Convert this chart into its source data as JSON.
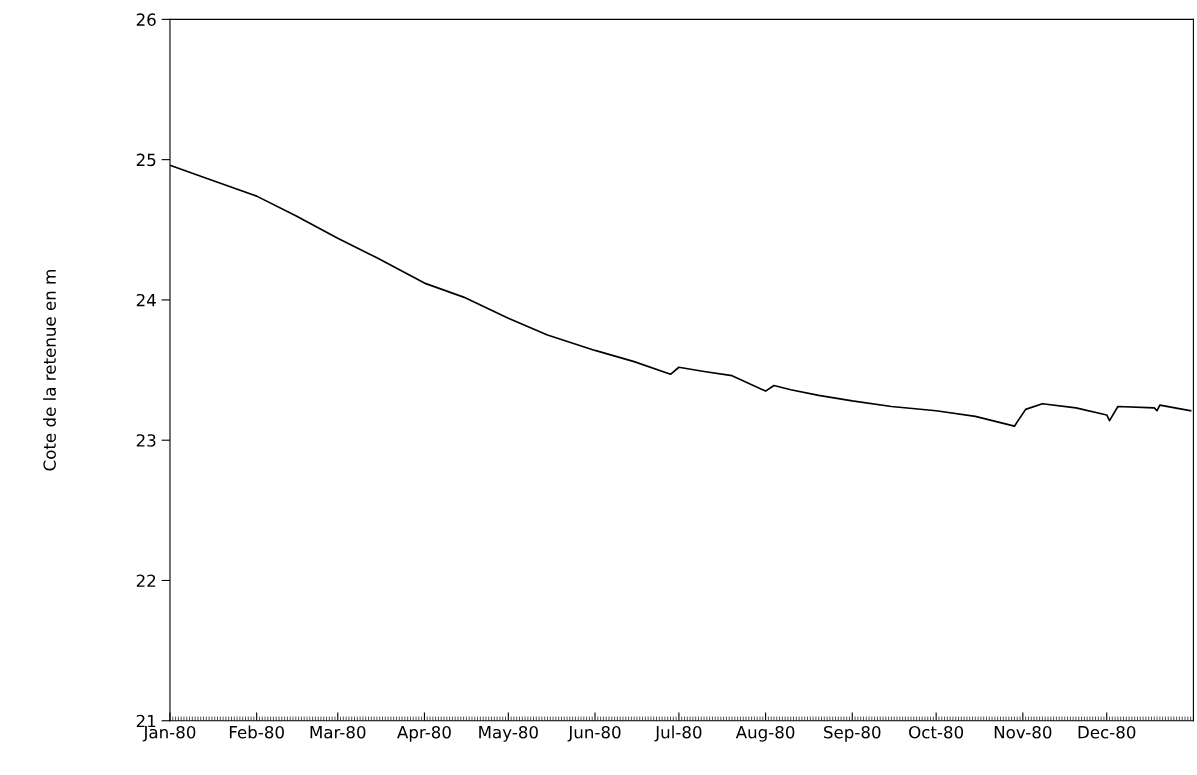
{
  "chart_data": {
    "type": "line",
    "ylabel": "Cote de la retenue en m",
    "x": [
      "1980-01-01",
      "1980-01-15",
      "1980-02-01",
      "1980-02-15",
      "1980-03-01",
      "1980-03-15",
      "1980-04-01",
      "1980-04-15",
      "1980-05-01",
      "1980-05-15",
      "1980-06-01",
      "1980-06-15",
      "1980-06-28",
      "1980-07-01",
      "1980-07-10",
      "1980-07-20",
      "1980-08-01",
      "1980-08-04",
      "1980-08-10",
      "1980-08-20",
      "1980-09-01",
      "1980-09-15",
      "1980-10-01",
      "1980-10-15",
      "1980-10-29",
      "1980-11-02",
      "1980-11-08",
      "1980-11-20",
      "1980-12-01",
      "1980-12-02",
      "1980-12-05",
      "1980-12-18",
      "1980-12-19",
      "1980-12-20",
      "1980-12-31"
    ],
    "series": [
      {
        "color": "#000000",
        "values": [
          24.96,
          24.86,
          24.74,
          24.6,
          24.44,
          24.3,
          24.12,
          24.02,
          23.87,
          23.75,
          23.64,
          23.56,
          23.47,
          23.52,
          23.49,
          23.46,
          23.35,
          23.39,
          23.36,
          23.32,
          23.28,
          23.24,
          23.21,
          23.17,
          23.1,
          23.22,
          23.26,
          23.23,
          23.18,
          23.14,
          23.24,
          23.23,
          23.21,
          23.25,
          23.21
        ]
      }
    ],
    "xlim": [
      "1980-01-01",
      "1981-01-01"
    ],
    "xticks": [
      {
        "value": "1980-01-01",
        "label": "Jan-80"
      },
      {
        "value": "1980-02-01",
        "label": "Feb-80"
      },
      {
        "value": "1980-03-01",
        "label": "Mar-80"
      },
      {
        "value": "1980-04-01",
        "label": "Apr-80"
      },
      {
        "value": "1980-05-01",
        "label": "May-80"
      },
      {
        "value": "1980-06-01",
        "label": "Jun-80"
      },
      {
        "value": "1980-07-01",
        "label": "Jul-80"
      },
      {
        "value": "1980-08-01",
        "label": "Aug-80"
      },
      {
        "value": "1980-09-01",
        "label": "Sep-80"
      },
      {
        "value": "1980-10-01",
        "label": "Oct-80"
      },
      {
        "value": "1980-11-01",
        "label": "Nov-80"
      },
      {
        "value": "1980-12-01",
        "label": "Dec-80"
      }
    ],
    "ylim": [
      21,
      26
    ],
    "yticks": [
      21,
      22,
      23,
      24,
      25,
      26
    ],
    "grid": false,
    "legend": false,
    "marker": "none",
    "line_style": "solid"
  }
}
